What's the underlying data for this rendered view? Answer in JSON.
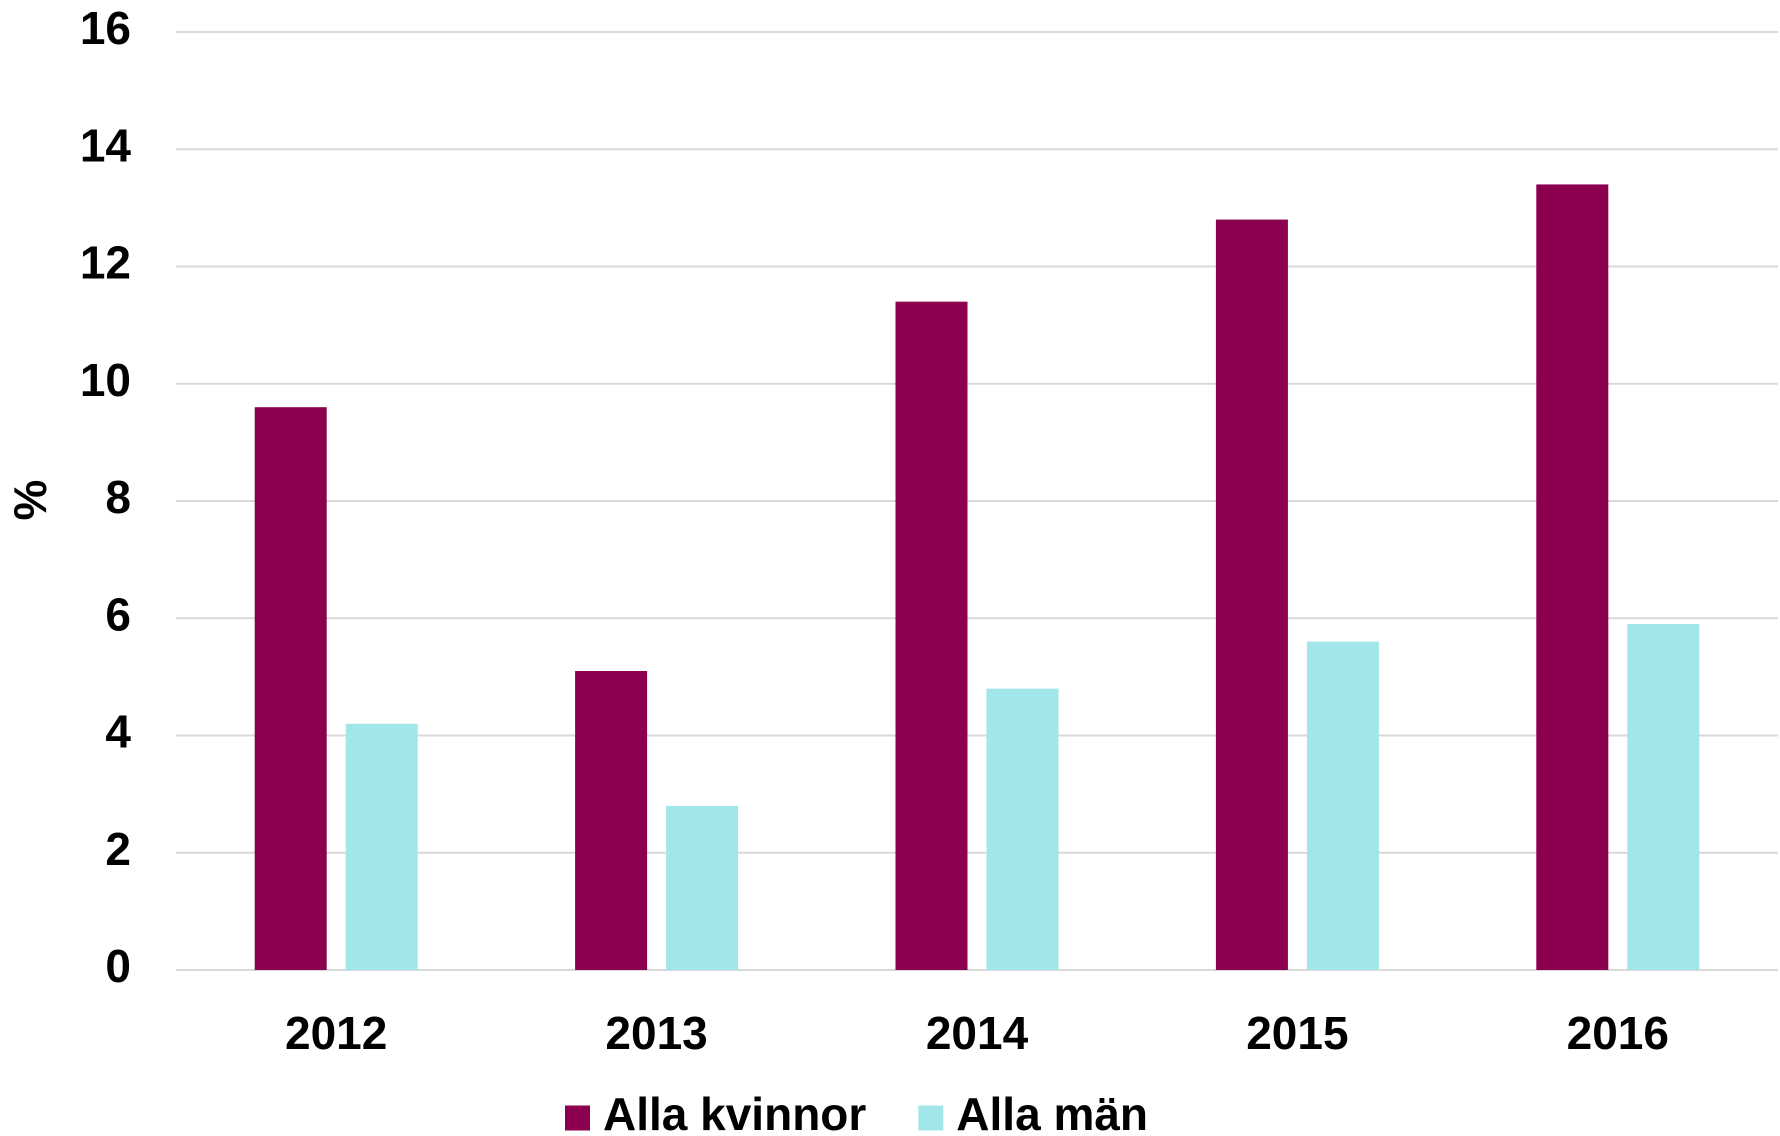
{
  "chart_data": {
    "type": "bar",
    "y_label": "%",
    "categories": [
      "2012",
      "2013",
      "2014",
      "2015",
      "2016"
    ],
    "series": [
      {
        "name": "Alla kvinnor",
        "color": "#8b004f",
        "values": [
          9.6,
          5.1,
          11.4,
          12.8,
          13.4
        ]
      },
      {
        "name": "Alla män",
        "color": "#a1e6e8",
        "values": [
          4.2,
          2.8,
          4.8,
          5.6,
          5.9
        ]
      }
    ],
    "ylim": [
      0,
      16
    ],
    "yticks": [
      0,
      2,
      4,
      6,
      8,
      10,
      12,
      14,
      16
    ],
    "grid": true,
    "legend": "bottom"
  }
}
